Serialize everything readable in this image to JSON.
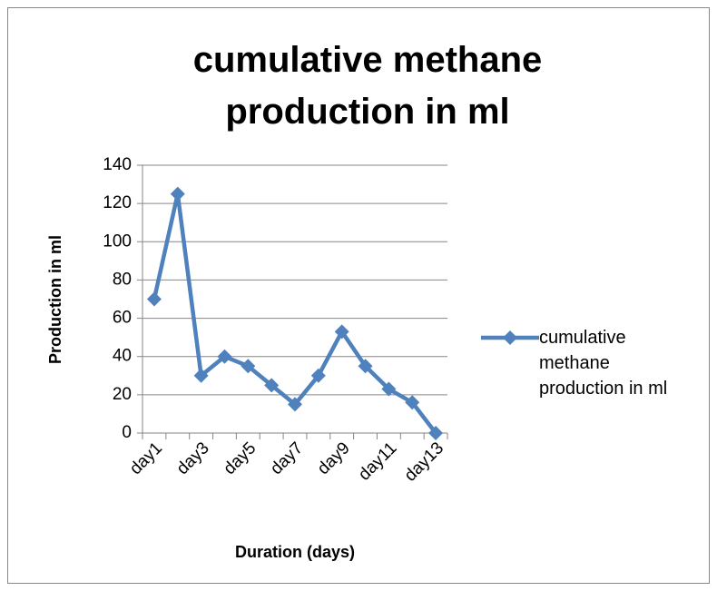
{
  "chart_data": {
    "type": "line",
    "title": "cumulative methane production in ml",
    "x_label": "Duration (days)",
    "y_label": "Production in ml",
    "categories": [
      "day1",
      null,
      "day3",
      null,
      "day5",
      null,
      "day7",
      null,
      "day9",
      null,
      "day11",
      null,
      "day13"
    ],
    "series": [
      {
        "name": "cumulative methane production in ml",
        "color": "#4F81BD",
        "values": [
          70,
          125,
          30,
          40,
          35,
          25,
          15,
          30,
          53,
          35,
          23,
          16,
          0
        ]
      }
    ],
    "ylim": [
      0,
      140
    ],
    "yticks": [
      0,
      20,
      40,
      60,
      80,
      100,
      120,
      140
    ],
    "grid": true,
    "legend": "right"
  }
}
